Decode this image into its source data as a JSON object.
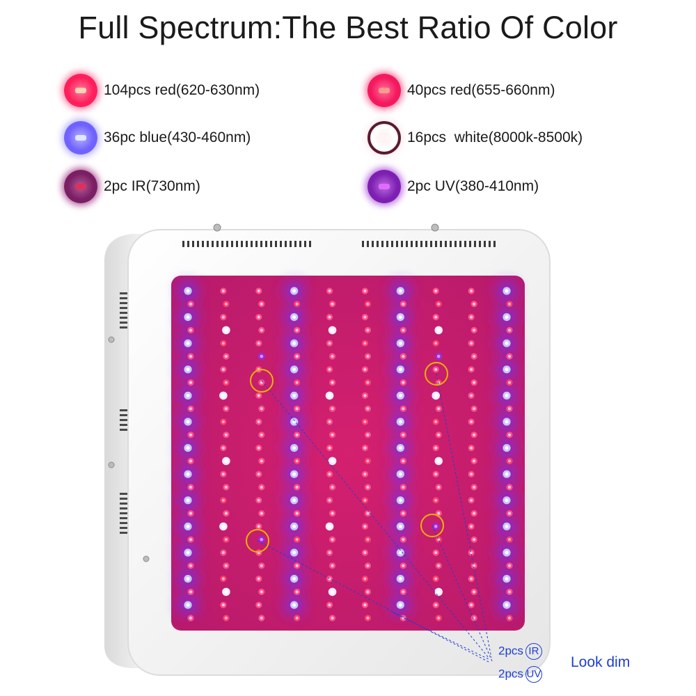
{
  "title": "Full Spectrum:The Best Ratio Of Color",
  "legend": [
    {
      "label": "104pcs red(620-630nm)",
      "color": "#ff1f5a",
      "core": "#ffd2b0",
      "glow": "#ff7aa0",
      "icon": "red-led-icon"
    },
    {
      "label": "40pcs red(655-660nm)",
      "color": "#f4185e",
      "core": "#ff9a8a",
      "glow": "#ff6f9c",
      "icon": "deep-red-led-icon"
    },
    {
      "label": "36pc blue(430-460nm)",
      "color": "#6f62ff",
      "core": "#dfe6ff",
      "glow": "#b6b0ff",
      "icon": "blue-led-icon"
    },
    {
      "label": "16pcs  white(8000k-8500k)",
      "color": "#ffffff",
      "core": "#fff6f4",
      "glow": "#ffe9ec",
      "icon": "white-led-icon"
    },
    {
      "label": "2pc IR(730nm)",
      "color": "#7a1f63",
      "core": "#e0305a",
      "glow": "#b25a9a",
      "icon": "ir-led-icon"
    },
    {
      "label": "2pc UV(380-410nm)",
      "color": "#7d1fb0",
      "core": "#e06cff",
      "glow": "#b86ae0",
      "icon": "uv-led-icon"
    }
  ],
  "annotation": {
    "ir_line": "2pcs",
    "ir_symbol": "IR",
    "uv_line": "2pcs",
    "uv_symbol": "UV",
    "note": "Look dim"
  },
  "colors": {
    "panel": "#c81e6e",
    "panel_glow": "#6d2fe0",
    "housing": "#f4f4f4",
    "callout": "#1f3fd0",
    "highlight_ring": "#e8b400"
  }
}
